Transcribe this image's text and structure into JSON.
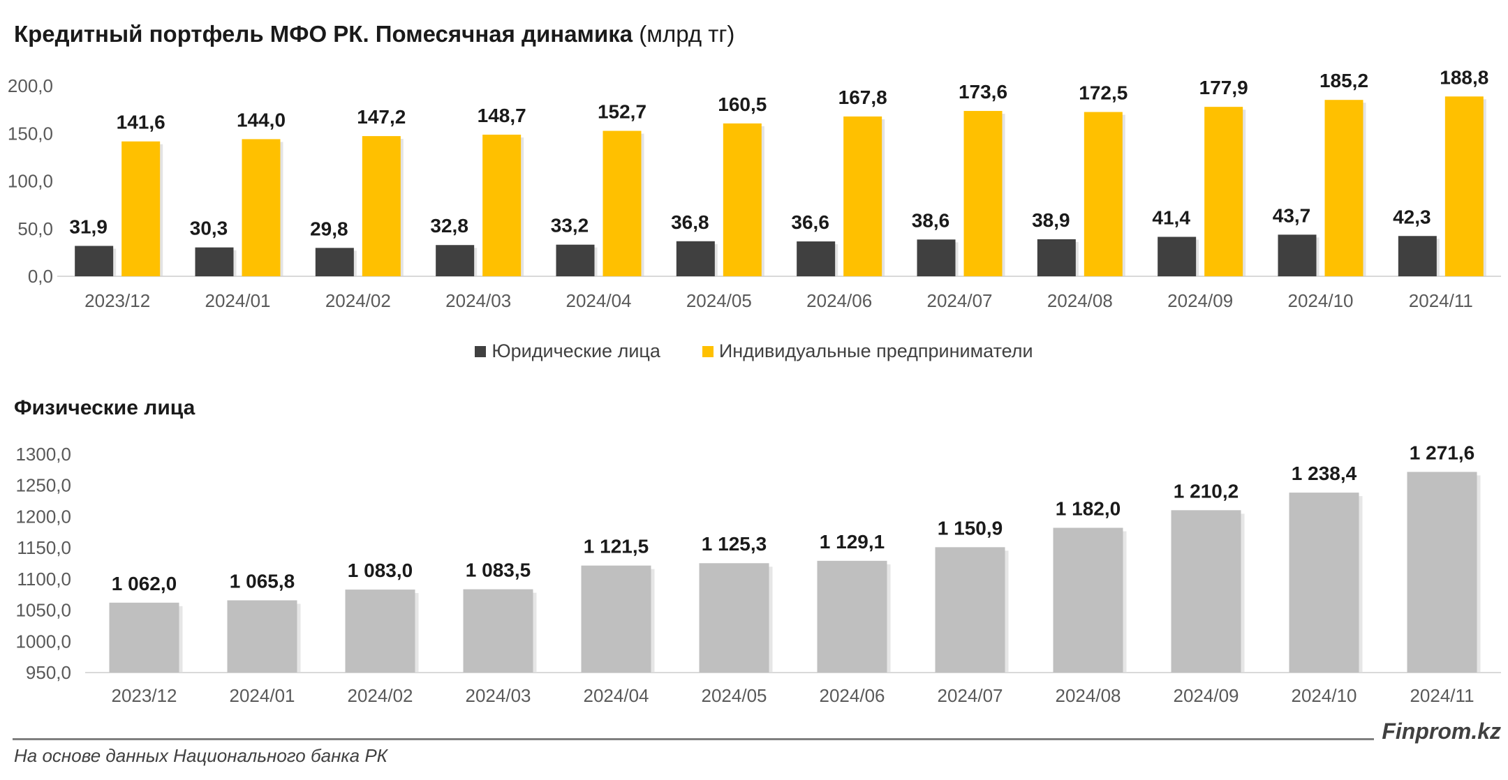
{
  "title": "Кредитный портфель МФО РК. Помесячная динамика",
  "title_unit": "(млрд тг)",
  "subtitle": "Физические лица",
  "source": "На основе данных Национального банка РК",
  "brand": "Finprom.kz",
  "colors": {
    "legal": "#404040",
    "ip": "#FFC000",
    "physical": "#BFBFBF"
  },
  "chart_data": [
    {
      "type": "bar",
      "categories": [
        "2023/12",
        "2024/01",
        "2024/02",
        "2024/03",
        "2024/04",
        "2024/05",
        "2024/06",
        "2024/07",
        "2024/08",
        "2024/09",
        "2024/10",
        "2024/11"
      ],
      "series": [
        {
          "name": "Юридические лица",
          "values": [
            31.9,
            30.3,
            29.8,
            32.8,
            33.2,
            36.8,
            36.6,
            38.6,
            38.9,
            41.4,
            43.7,
            42.3
          ],
          "labels": [
            "31,9",
            "30,3",
            "29,8",
            "32,8",
            "33,2",
            "36,8",
            "36,6",
            "38,6",
            "38,9",
            "41,4",
            "43,7",
            "42,3"
          ]
        },
        {
          "name": "Индивидуальные предприниматели",
          "values": [
            141.6,
            144.0,
            147.2,
            148.7,
            152.7,
            160.5,
            167.8,
            173.6,
            172.5,
            177.9,
            185.2,
            188.8
          ],
          "labels": [
            "141,6",
            "144,0",
            "147,2",
            "148,7",
            "152,7",
            "160,5",
            "167,8",
            "173,6",
            "172,5",
            "177,9",
            "185,2",
            "188,8"
          ]
        }
      ],
      "ylim": [
        0,
        200
      ],
      "yticks": [
        0,
        50,
        100,
        150,
        200
      ],
      "ytick_labels": [
        "0,0",
        "50,0",
        "100,0",
        "150,0",
        "200,0"
      ],
      "legend": "bottom",
      "grid": false
    },
    {
      "type": "bar",
      "categories": [
        "2023/12",
        "2024/01",
        "2024/02",
        "2024/03",
        "2024/04",
        "2024/05",
        "2024/06",
        "2024/07",
        "2024/08",
        "2024/09",
        "2024/10",
        "2024/11"
      ],
      "values": [
        1062.0,
        1065.8,
        1083.0,
        1083.5,
        1121.5,
        1125.3,
        1129.1,
        1150.9,
        1182.0,
        1210.2,
        1238.4,
        1271.6
      ],
      "labels": [
        "1 062,0",
        "1 065,8",
        "1 083,0",
        "1 083,5",
        "1 121,5",
        "1 125,3",
        "1 129,1",
        "1 150,9",
        "1 182,0",
        "1 210,2",
        "1 238,4",
        "1 271,6"
      ],
      "ylim": [
        950,
        1300
      ],
      "yticks": [
        950,
        1000,
        1050,
        1100,
        1150,
        1200,
        1250,
        1300
      ],
      "ytick_labels": [
        "950,0",
        "1000,0",
        "1050,0",
        "1100,0",
        "1150,0",
        "1200,0",
        "1250,0",
        "1300,0"
      ],
      "grid": false
    }
  ]
}
